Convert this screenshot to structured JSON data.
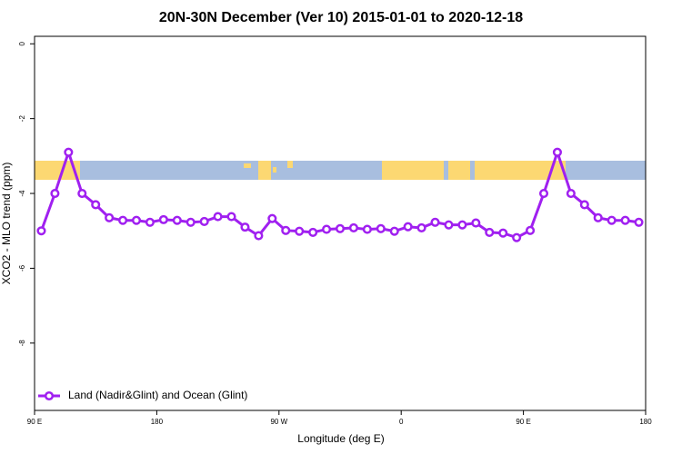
{
  "chart_data": {
    "type": "line",
    "title": "20N-30N December (Ver 10)   2015-01-01 to 2020-12-18",
    "x_label": "Longitude (deg E)",
    "y_label": "XCO2 - MLO trend (ppm)",
    "xlim": [
      90,
      540
    ],
    "ylim": [
      -9.8,
      0.2
    ],
    "xticks": [
      {
        "value": 90,
        "label": "90 E"
      },
      180,
      {
        "value": 270,
        "label": "90 W"
      },
      {
        "value": 360,
        "label": "0"
      },
      {
        "value": 450,
        "label": "90 E"
      },
      {
        "value": 540,
        "label": "180"
      }
    ],
    "yticks": [
      0,
      -2,
      -4,
      -6,
      -8
    ],
    "legend": "bottom-left",
    "series": [
      {
        "name": "Land (Nadir&Glint) and Ocean (Glint)",
        "color": "#a020f0",
        "x": [
          95,
          105,
          115,
          125,
          135,
          145,
          155,
          165,
          175,
          185,
          195,
          205,
          215,
          225,
          235,
          245,
          255,
          265,
          275,
          285,
          295,
          305,
          315,
          325,
          335,
          345,
          355,
          365,
          375,
          385,
          395,
          405,
          415,
          425,
          435,
          445,
          455,
          465,
          475,
          485,
          495,
          505,
          515,
          525,
          535
        ],
        "values": [
          -5.0,
          -4.0,
          -2.9,
          -4.0,
          -4.3,
          -4.65,
          -4.72,
          -4.72,
          -4.77,
          -4.7,
          -4.72,
          -4.77,
          -4.75,
          -4.62,
          -4.62,
          -4.9,
          -5.13,
          -4.67,
          -4.99,
          -5.01,
          -5.04,
          -4.96,
          -4.94,
          -4.92,
          -4.96,
          -4.94,
          -5.01,
          -4.89,
          -4.92,
          -4.77,
          -4.84,
          -4.84,
          -4.79,
          -5.04,
          -5.06,
          -5.18,
          -4.99,
          -4.0,
          -2.9,
          -4.0,
          -4.3,
          -4.65,
          -4.72,
          -4.72,
          -4.77
        ]
      }
    ]
  }
}
